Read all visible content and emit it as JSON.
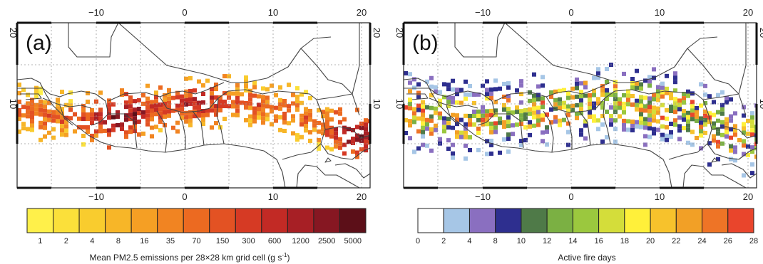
{
  "panels": [
    {
      "id": "a",
      "label": "(a)",
      "x_ticks": [
        "−10",
        "0",
        "10",
        "20"
      ],
      "y_ticks": [
        "20",
        "10"
      ],
      "colorbar": {
        "labels": [
          "1",
          "2",
          "4",
          "8",
          "16",
          "35",
          "70",
          "150",
          "300",
          "600",
          "1200",
          "2500",
          "5000"
        ],
        "colors": [
          "#fff04a",
          "#fbe03a",
          "#f9cc2e",
          "#f7b628",
          "#f59f24",
          "#f18422",
          "#ec6a21",
          "#e35223",
          "#d63a24",
          "#c22a25",
          "#a71f25",
          "#861722",
          "#5c0f18"
        ],
        "title_main": "Mean PM2.5 emissions per 28×28 km grid cell (g s",
        "title_sup": "-1",
        "title_end": ")"
      }
    },
    {
      "id": "b",
      "label": "(b)",
      "x_ticks": [
        "−10",
        "0",
        "10",
        "20"
      ],
      "y_ticks": [
        "20",
        "10"
      ],
      "colorbar": {
        "labels": [
          "0",
          "2",
          "4",
          "8",
          "10",
          "12",
          "14",
          "16",
          "18",
          "20",
          "22",
          "24",
          "26",
          "28"
        ],
        "colors": [
          "#ffffff",
          "#a6c6e6",
          "#8a6fc0",
          "#2e2f8f",
          "#4f7a48",
          "#7bb043",
          "#9bc83e",
          "#d4dd3a",
          "#fff03a",
          "#f7c22c",
          "#f2a026",
          "#ee7426",
          "#e9452c"
        ],
        "title": "Active fire days"
      }
    }
  ]
}
